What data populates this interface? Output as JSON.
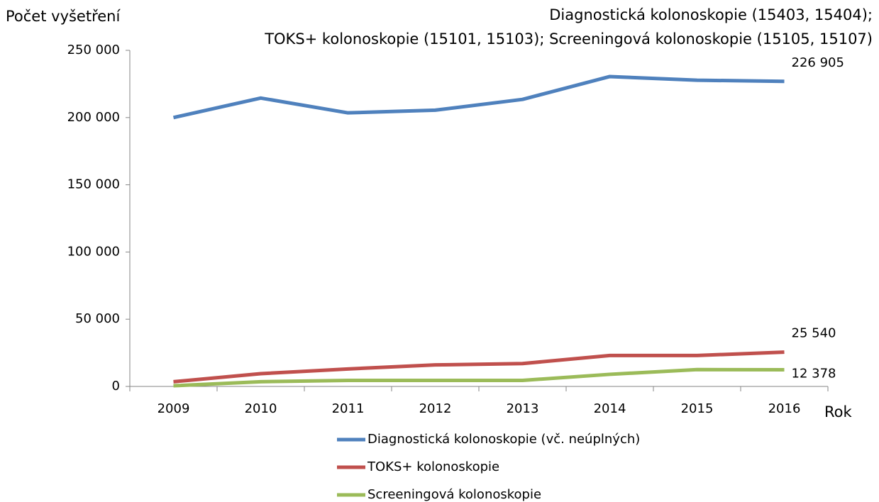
{
  "chart_data": {
    "type": "line",
    "title": [
      "Diagnostická kolonoskopie (15403, 15404);",
      "TOKS+ kolonoskopie (15101, 15103); Screeningová kolonoskopie (15105, 15107)"
    ],
    "ylabel": "Počet vyšetření",
    "xlabel": "Rok",
    "categories": [
      "2009",
      "2010",
      "2011",
      "2012",
      "2013",
      "2014",
      "2015",
      "2016"
    ],
    "series": [
      {
        "name": "Diagnostická kolonoskopie (vč. neúplných)",
        "color": "#4f81bd",
        "values": [
          200000,
          214500,
          203500,
          205500,
          213500,
          230500,
          227800,
          226905
        ],
        "value_labels": [
          null,
          null,
          null,
          null,
          null,
          null,
          null,
          "226 905"
        ]
      },
      {
        "name": "TOKS+ kolonoskopie",
        "color": "#c0504d",
        "values": [
          3500,
          9500,
          13000,
          16000,
          17000,
          23000,
          23000,
          25540
        ],
        "value_labels": [
          null,
          null,
          null,
          null,
          null,
          null,
          null,
          "25 540"
        ]
      },
      {
        "name": "Screeningová kolonoskopie",
        "color": "#9bbb59",
        "values": [
          500,
          3500,
          4500,
          4500,
          4500,
          9000,
          12500,
          12378
        ],
        "value_labels": [
          null,
          null,
          null,
          null,
          null,
          null,
          null,
          "12 378"
        ]
      }
    ],
    "ylim": [
      0,
      250000
    ],
    "yticks": [
      0,
      {
        "value": 50000,
        "label": "50 000"
      },
      {
        "value": 100000,
        "label": "100 000"
      },
      {
        "value": 150000,
        "label": "150 000"
      },
      {
        "value": 200000,
        "label": "200 000"
      },
      {
        "value": 250000,
        "label": "250 000"
      }
    ],
    "grid": false,
    "legend": "bottom"
  }
}
